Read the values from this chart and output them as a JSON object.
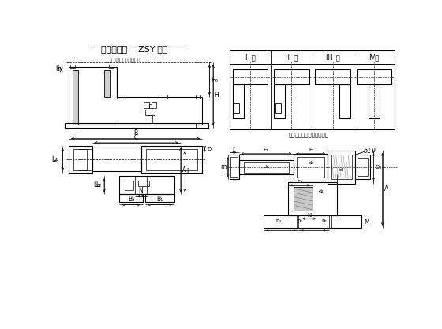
{
  "title": "驱动装置架    ZSY-系列",
  "centerline_label": "电动机与减速器中心线",
  "type_title": "予装零件及地脚螺栋位置图",
  "bg_color": "#ffffff",
  "lc": "#000000"
}
